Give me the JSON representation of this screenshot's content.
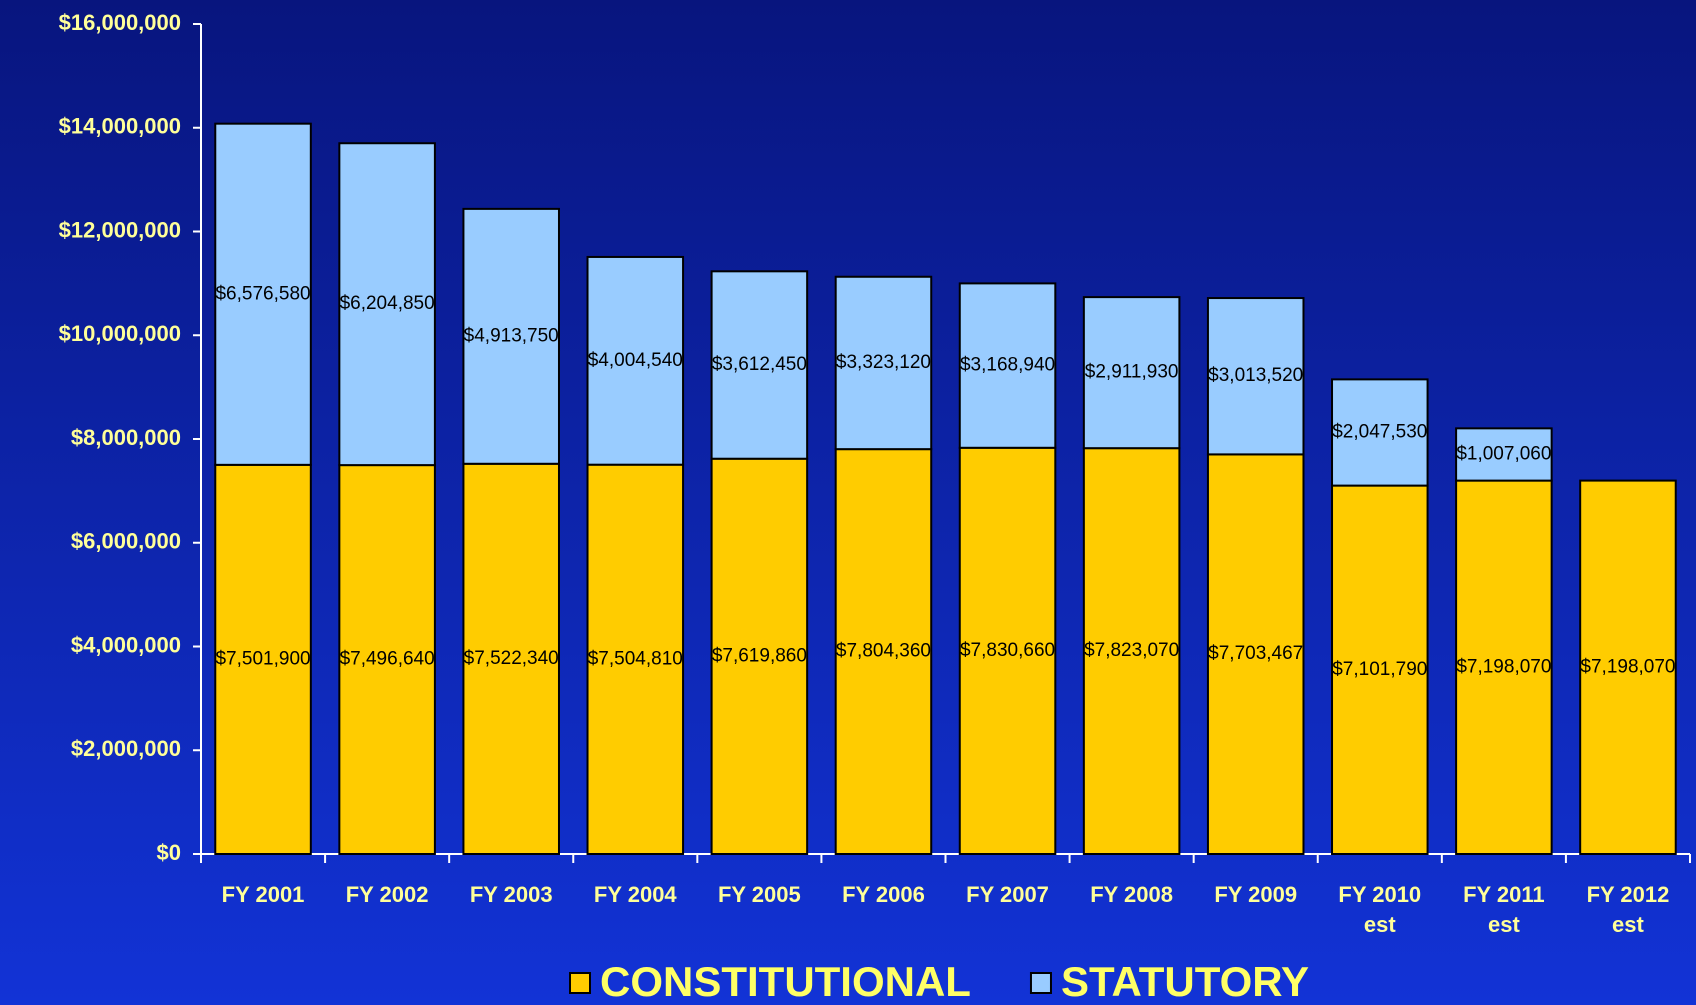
{
  "chart_data": {
    "type": "stacked_bar",
    "categories": [
      "FY 2001",
      "FY 2002",
      "FY 2003",
      "FY 2004",
      "FY 2005",
      "FY 2006",
      "FY 2007",
      "FY 2008",
      "FY 2009",
      "FY 2010\nest",
      "FY 2011\nest",
      "FY 2012\nest"
    ],
    "series": [
      {
        "name": "CONSTITUTIONAL",
        "color": "#ffcc00",
        "values": [
          7501900,
          7496640,
          7522340,
          7504810,
          7619860,
          7804360,
          7830660,
          7823070,
          7703467,
          7101790,
          7198070,
          7198070
        ],
        "value_labels": [
          "$7,501,900",
          "$7,496,640",
          "$7,522,340",
          "$7,504,810",
          "$7,619,860",
          "$7,804,360",
          "$7,830,660",
          "$7,823,070",
          "$7,703,467",
          "$7,101,790",
          "$7,198,070",
          "$7,198,070"
        ]
      },
      {
        "name": "STATUTORY",
        "color": "#99ccff",
        "values": [
          6576580,
          6204850,
          4913750,
          4004540,
          3612450,
          3323120,
          3168940,
          2911930,
          3013520,
          2047530,
          1007060,
          null
        ],
        "value_labels": [
          "$6,576,580",
          "$6,204,850",
          "$4,913,750",
          "$4,004,540",
          "$3,612,450",
          "$3,323,120",
          "$3,168,940",
          "$2,911,930",
          "$3,013,520",
          "$2,047,530",
          "$1,007,060",
          null
        ]
      }
    ],
    "ylim": [
      0,
      16000000
    ],
    "yticks": [
      {
        "value": 0,
        "label": "$0"
      },
      {
        "value": 2000000,
        "label": "$2,000,000"
      },
      {
        "value": 4000000,
        "label": "$4,000,000"
      },
      {
        "value": 6000000,
        "label": "$6,000,000"
      },
      {
        "value": 8000000,
        "label": "$8,000,000"
      },
      {
        "value": 10000000,
        "label": "$10,000,000"
      },
      {
        "value": 12000000,
        "label": "$12,000,000"
      },
      {
        "value": 14000000,
        "label": "$14,000,000"
      },
      {
        "value": 16000000,
        "label": "$16,000,000"
      }
    ],
    "legend": "bottom"
  }
}
